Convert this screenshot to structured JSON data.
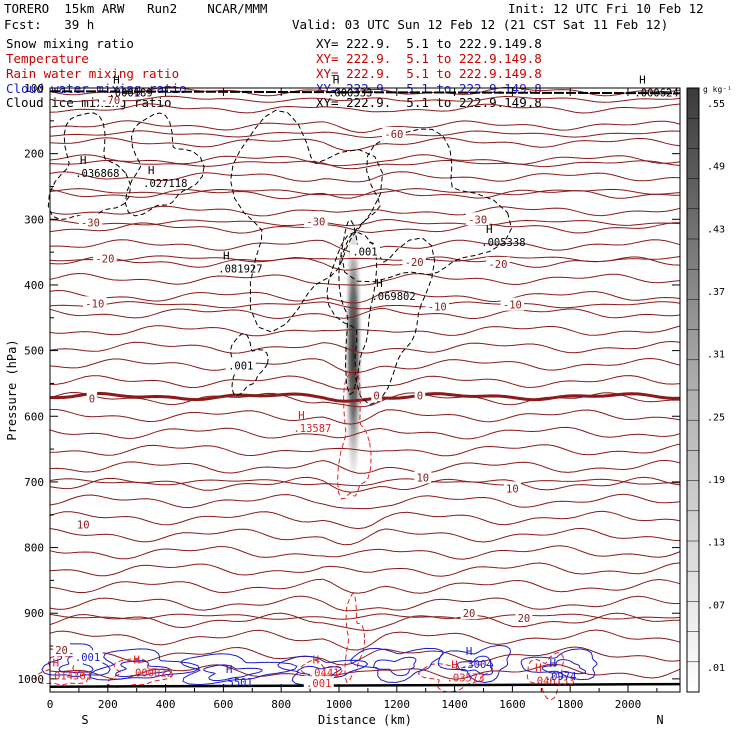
{
  "header": {
    "model": "TORERO  15km ARW   Run2    NCAR/MMM",
    "init": "Init: 12 UTC Fri 10 Feb 12",
    "fcst": "Fcst:   39 h",
    "valid": "Valid: 03 UTC Sun 12 Feb 12 (21 CST Sat 11 Feb 12)"
  },
  "fields": [
    {
      "name": "Snow mixing ratio",
      "xy": "XY= 222.9.  5.1 to 222.9.149.8",
      "color": "#000000"
    },
    {
      "name": "Temperature",
      "xy": "XY= 222.9.  5.1 to 222.9.149.8",
      "color": "#cc0000"
    },
    {
      "name": "Rain water mixing ratio",
      "xy": "XY= 222.9.  5.1 to 222.9.149.8",
      "color": "#cc0000"
    },
    {
      "name": "Cloud water mixing ratio",
      "xy": "XY= 222.9.  5.1 to 222.9.149.8",
      "color": "#1c1cc8"
    },
    {
      "name": "Cloud ice mixing ratio",
      "xy": "XY= 222.9.  5.1 to 222.9.149.8",
      "color": "#000000"
    }
  ],
  "colors": {
    "temperature": "#8b1a1a",
    "rain": "#e02020",
    "cloud_water": "#1c1cc8",
    "snow": "#000000",
    "ice": "#000000"
  },
  "chart_data": {
    "type": "contour cross-section",
    "xlabel": "Distance (km)",
    "ylabel": "Pressure (hPa)",
    "xlim": [
      0,
      2180
    ],
    "ylim": [
      1020,
      100
    ],
    "xticks": [
      0,
      200,
      400,
      600,
      800,
      1000,
      1200,
      1400,
      1600,
      1800,
      2000
    ],
    "yticks": [
      100,
      200,
      300,
      400,
      500,
      600,
      700,
      800,
      900,
      1000
    ],
    "x_ends": {
      "left": "S",
      "right": "N"
    },
    "colorbar": {
      "unit": "g kg⁻¹",
      "ticks": [
        ".01",
        ".07",
        ".13",
        ".19",
        ".25",
        ".31",
        ".37",
        ".43",
        ".49",
        ".55"
      ],
      "range": [
        0,
        0.6
      ]
    },
    "temperature_isotherms": [
      {
        "label": "-70",
        "p": 117
      },
      {
        "label": "-60",
        "p": 170
      },
      {
        "label": "-50",
        "p": 215
      },
      {
        "label": "-40",
        "p": 258
      },
      {
        "label": "-30",
        "p": 305
      },
      {
        "label": "-20",
        "p": 360
      },
      {
        "label": "-10",
        "p": 430
      },
      {
        "label": "0",
        "p": 570
      },
      {
        "label": "10",
        "p": 700
      },
      {
        "label": "20",
        "p": 905
      }
    ],
    "contour_labels": [
      {
        "text": "-70",
        "x": 210,
        "p": 118,
        "color": "temp"
      },
      {
        "text": "-60",
        "x": 1190,
        "p": 170,
        "color": "temp"
      },
      {
        "text": "-30",
        "x": 140,
        "p": 305,
        "color": "temp"
      },
      {
        "text": "-30",
        "x": 920,
        "p": 303,
        "color": "temp"
      },
      {
        "text": "-30",
        "x": 1480,
        "p": 300,
        "color": "temp"
      },
      {
        "text": "-20",
        "x": 190,
        "p": 360,
        "color": "temp"
      },
      {
        "text": "-20",
        "x": 1260,
        "p": 365,
        "color": "temp"
      },
      {
        "text": "-20",
        "x": 1550,
        "p": 368,
        "color": "temp"
      },
      {
        "text": "-10",
        "x": 155,
        "p": 428,
        "color": "temp"
      },
      {
        "text": "-10",
        "x": 1340,
        "p": 433,
        "color": "temp"
      },
      {
        "text": "-10",
        "x": 1600,
        "p": 430,
        "color": "temp"
      },
      {
        "text": "0",
        "x": 145,
        "p": 573,
        "color": "temp"
      },
      {
        "text": "0",
        "x": 1130,
        "p": 568,
        "color": "temp"
      },
      {
        "text": "0",
        "x": 1280,
        "p": 568,
        "color": "temp"
      },
      {
        "text": "10",
        "x": 115,
        "p": 765,
        "color": "temp"
      },
      {
        "text": "10",
        "x": 1290,
        "p": 693,
        "color": "temp"
      },
      {
        "text": "10",
        "x": 1600,
        "p": 710,
        "color": "temp"
      },
      {
        "text": "20",
        "x": 1450,
        "p": 900,
        "color": "temp"
      },
      {
        "text": "20",
        "x": 1640,
        "p": 907,
        "color": "temp"
      },
      {
        "text": "20",
        "x": 40,
        "p": 956,
        "color": "temp"
      },
      {
        "text": ".001",
        "x": 130,
        "p": 967,
        "color": "cw"
      },
      {
        "text": ".001",
        "x": 660,
        "p": 523,
        "color": "snow"
      },
      {
        "text": ".001",
        "x": 1090,
        "p": 349,
        "color": "snow"
      },
      {
        "text": ".001",
        "x": 930,
        "p": 1006,
        "color": "rain"
      }
    ],
    "extrema": [
      {
        "x": 115,
        "p": 225,
        "value": ".036868",
        "color": "snow"
      },
      {
        "x": 350,
        "p": 240,
        "value": ".027118",
        "color": "snow"
      },
      {
        "x": 230,
        "p": 102,
        "value": ".000189",
        "color": "snow"
      },
      {
        "x": 990,
        "p": 102,
        "value": ".000333",
        "color": "snow"
      },
      {
        "x": 2050,
        "p": 102,
        "value": ".000624",
        "color": "snow"
      },
      {
        "x": 610,
        "p": 370,
        "value": ".081927",
        "color": "snow"
      },
      {
        "x": 1520,
        "p": 330,
        "value": ".005338",
        "color": "snow"
      },
      {
        "x": 1140,
        "p": 412,
        "value": ".069802",
        "color": "snow"
      },
      {
        "x": 870,
        "p": 613,
        "value": ".13587",
        "color": "rain"
      },
      {
        "x": 20,
        "p": 990,
        "value": ".014361",
        "color": "rain"
      },
      {
        "x": 300,
        "p": 986,
        "value": ".000022",
        "color": "rain"
      },
      {
        "x": 920,
        "p": 986,
        "value": ".0441",
        "color": "rain"
      },
      {
        "x": 1400,
        "p": 993,
        "value": ".03573",
        "color": "rain"
      },
      {
        "x": 1690,
        "p": 998,
        "value": ".046133",
        "color": "rain"
      },
      {
        "x": 620,
        "p": 1000,
        "value": ".5501",
        "color": "cw"
      },
      {
        "x": 1450,
        "p": 973,
        "value": ".3004",
        "color": "cw"
      },
      {
        "x": 1740,
        "p": 991,
        "value": ".0974",
        "color": "cw"
      }
    ],
    "snow_max": {
      "x": 1050,
      "p": 500,
      "value": 0.55
    }
  }
}
